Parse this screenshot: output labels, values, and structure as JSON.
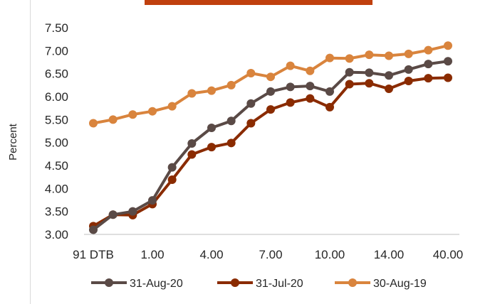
{
  "chart_data": {
    "type": "line",
    "title": "",
    "xlabel": "",
    "ylabel": "Percent",
    "ylim": [
      3.0,
      7.5
    ],
    "y_ticks": [
      "3.00",
      "3.50",
      "4.00",
      "4.50",
      "5.00",
      "5.50",
      "6.00",
      "6.50",
      "7.00",
      "7.50"
    ],
    "x_tick_labels": [
      "91 DTB",
      "1.00",
      "4.00",
      "7.00",
      "10.00",
      "14.00",
      "40.00"
    ],
    "grid": false,
    "legend_position": "bottom",
    "series": [
      {
        "name": "31-Aug-20",
        "color": "#5a4a46",
        "values": [
          3.1,
          3.43,
          3.5,
          3.74,
          4.46,
          4.98,
          5.32,
          5.47,
          5.85,
          6.11,
          6.21,
          6.23,
          6.11,
          6.53,
          6.52,
          6.46,
          6.59,
          6.71,
          6.77
        ]
      },
      {
        "name": "31-Jul-20",
        "color": "#8a2b00",
        "values": [
          3.18,
          3.43,
          3.42,
          3.66,
          4.19,
          4.74,
          4.9,
          4.99,
          5.42,
          5.72,
          5.87,
          5.96,
          5.77,
          6.27,
          6.29,
          6.17,
          6.34,
          6.4,
          6.41
        ]
      },
      {
        "name": "30-Aug-19",
        "color": "#d9843d",
        "values": [
          5.42,
          5.5,
          5.61,
          5.68,
          5.79,
          6.07,
          6.13,
          6.25,
          6.51,
          6.43,
          6.67,
          6.56,
          6.84,
          6.83,
          6.91,
          6.89,
          6.93,
          7.01,
          7.11
        ]
      }
    ]
  }
}
